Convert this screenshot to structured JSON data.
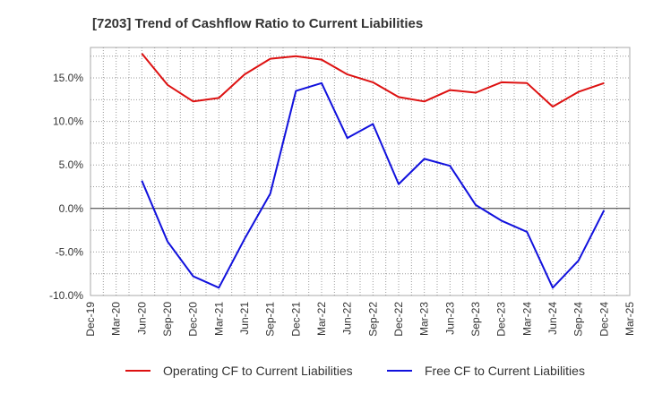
{
  "chart_data": {
    "type": "line",
    "title": "[7203]  Trend of Cashflow Ratio to Current Liabilities",
    "xlabel": "",
    "ylabel": "",
    "x_ticks": [
      "Dec-19",
      "Mar-20",
      "Jun-20",
      "Sep-20",
      "Dec-20",
      "Mar-21",
      "Jun-21",
      "Sep-21",
      "Dec-21",
      "Mar-22",
      "Jun-22",
      "Sep-22",
      "Dec-22",
      "Mar-23",
      "Jun-23",
      "Sep-23",
      "Dec-23",
      "Mar-24",
      "Jun-24",
      "Sep-24",
      "Dec-24",
      "Mar-25"
    ],
    "y_ticks": [
      "15.0%",
      "10.0%",
      "5.0%",
      "0.0%",
      "-5.0%",
      "-10.0%"
    ],
    "y_tick_values": [
      15,
      10,
      5,
      0,
      -5,
      -10
    ],
    "ylim": [
      -10,
      18.5
    ],
    "grid": true,
    "legend_position": "bottom",
    "series": [
      {
        "name": "Operating CF to Current Liabilities",
        "color": "#dd1111",
        "x": [
          "Jun-20",
          "Sep-20",
          "Dec-20",
          "Mar-21",
          "Jun-21",
          "Sep-21",
          "Dec-21",
          "Mar-22",
          "Jun-22",
          "Sep-22",
          "Dec-22",
          "Mar-23",
          "Jun-23",
          "Sep-23",
          "Dec-23",
          "Mar-24",
          "Jun-24",
          "Sep-24",
          "Dec-24"
        ],
        "values": [
          17.8,
          14.2,
          12.3,
          12.7,
          15.4,
          17.2,
          17.5,
          17.1,
          15.4,
          14.5,
          12.8,
          12.3,
          13.6,
          13.3,
          14.5,
          14.4,
          11.7,
          13.4,
          14.4
        ]
      },
      {
        "name": "Free CF to Current Liabilities",
        "color": "#1111dd",
        "x": [
          "Jun-20",
          "Sep-20",
          "Dec-20",
          "Mar-21",
          "Jun-21",
          "Sep-21",
          "Dec-21",
          "Mar-22",
          "Jun-22",
          "Sep-22",
          "Dec-22",
          "Mar-23",
          "Jun-23",
          "Sep-23",
          "Dec-23",
          "Mar-24",
          "Jun-24",
          "Sep-24",
          "Dec-24"
        ],
        "values": [
          3.2,
          -3.8,
          -7.8,
          -9.1,
          -3.5,
          1.7,
          13.5,
          14.4,
          8.1,
          9.7,
          2.8,
          5.7,
          4.9,
          0.4,
          -1.4,
          -2.7,
          -9.1,
          -6.0,
          -0.2
        ]
      }
    ]
  }
}
